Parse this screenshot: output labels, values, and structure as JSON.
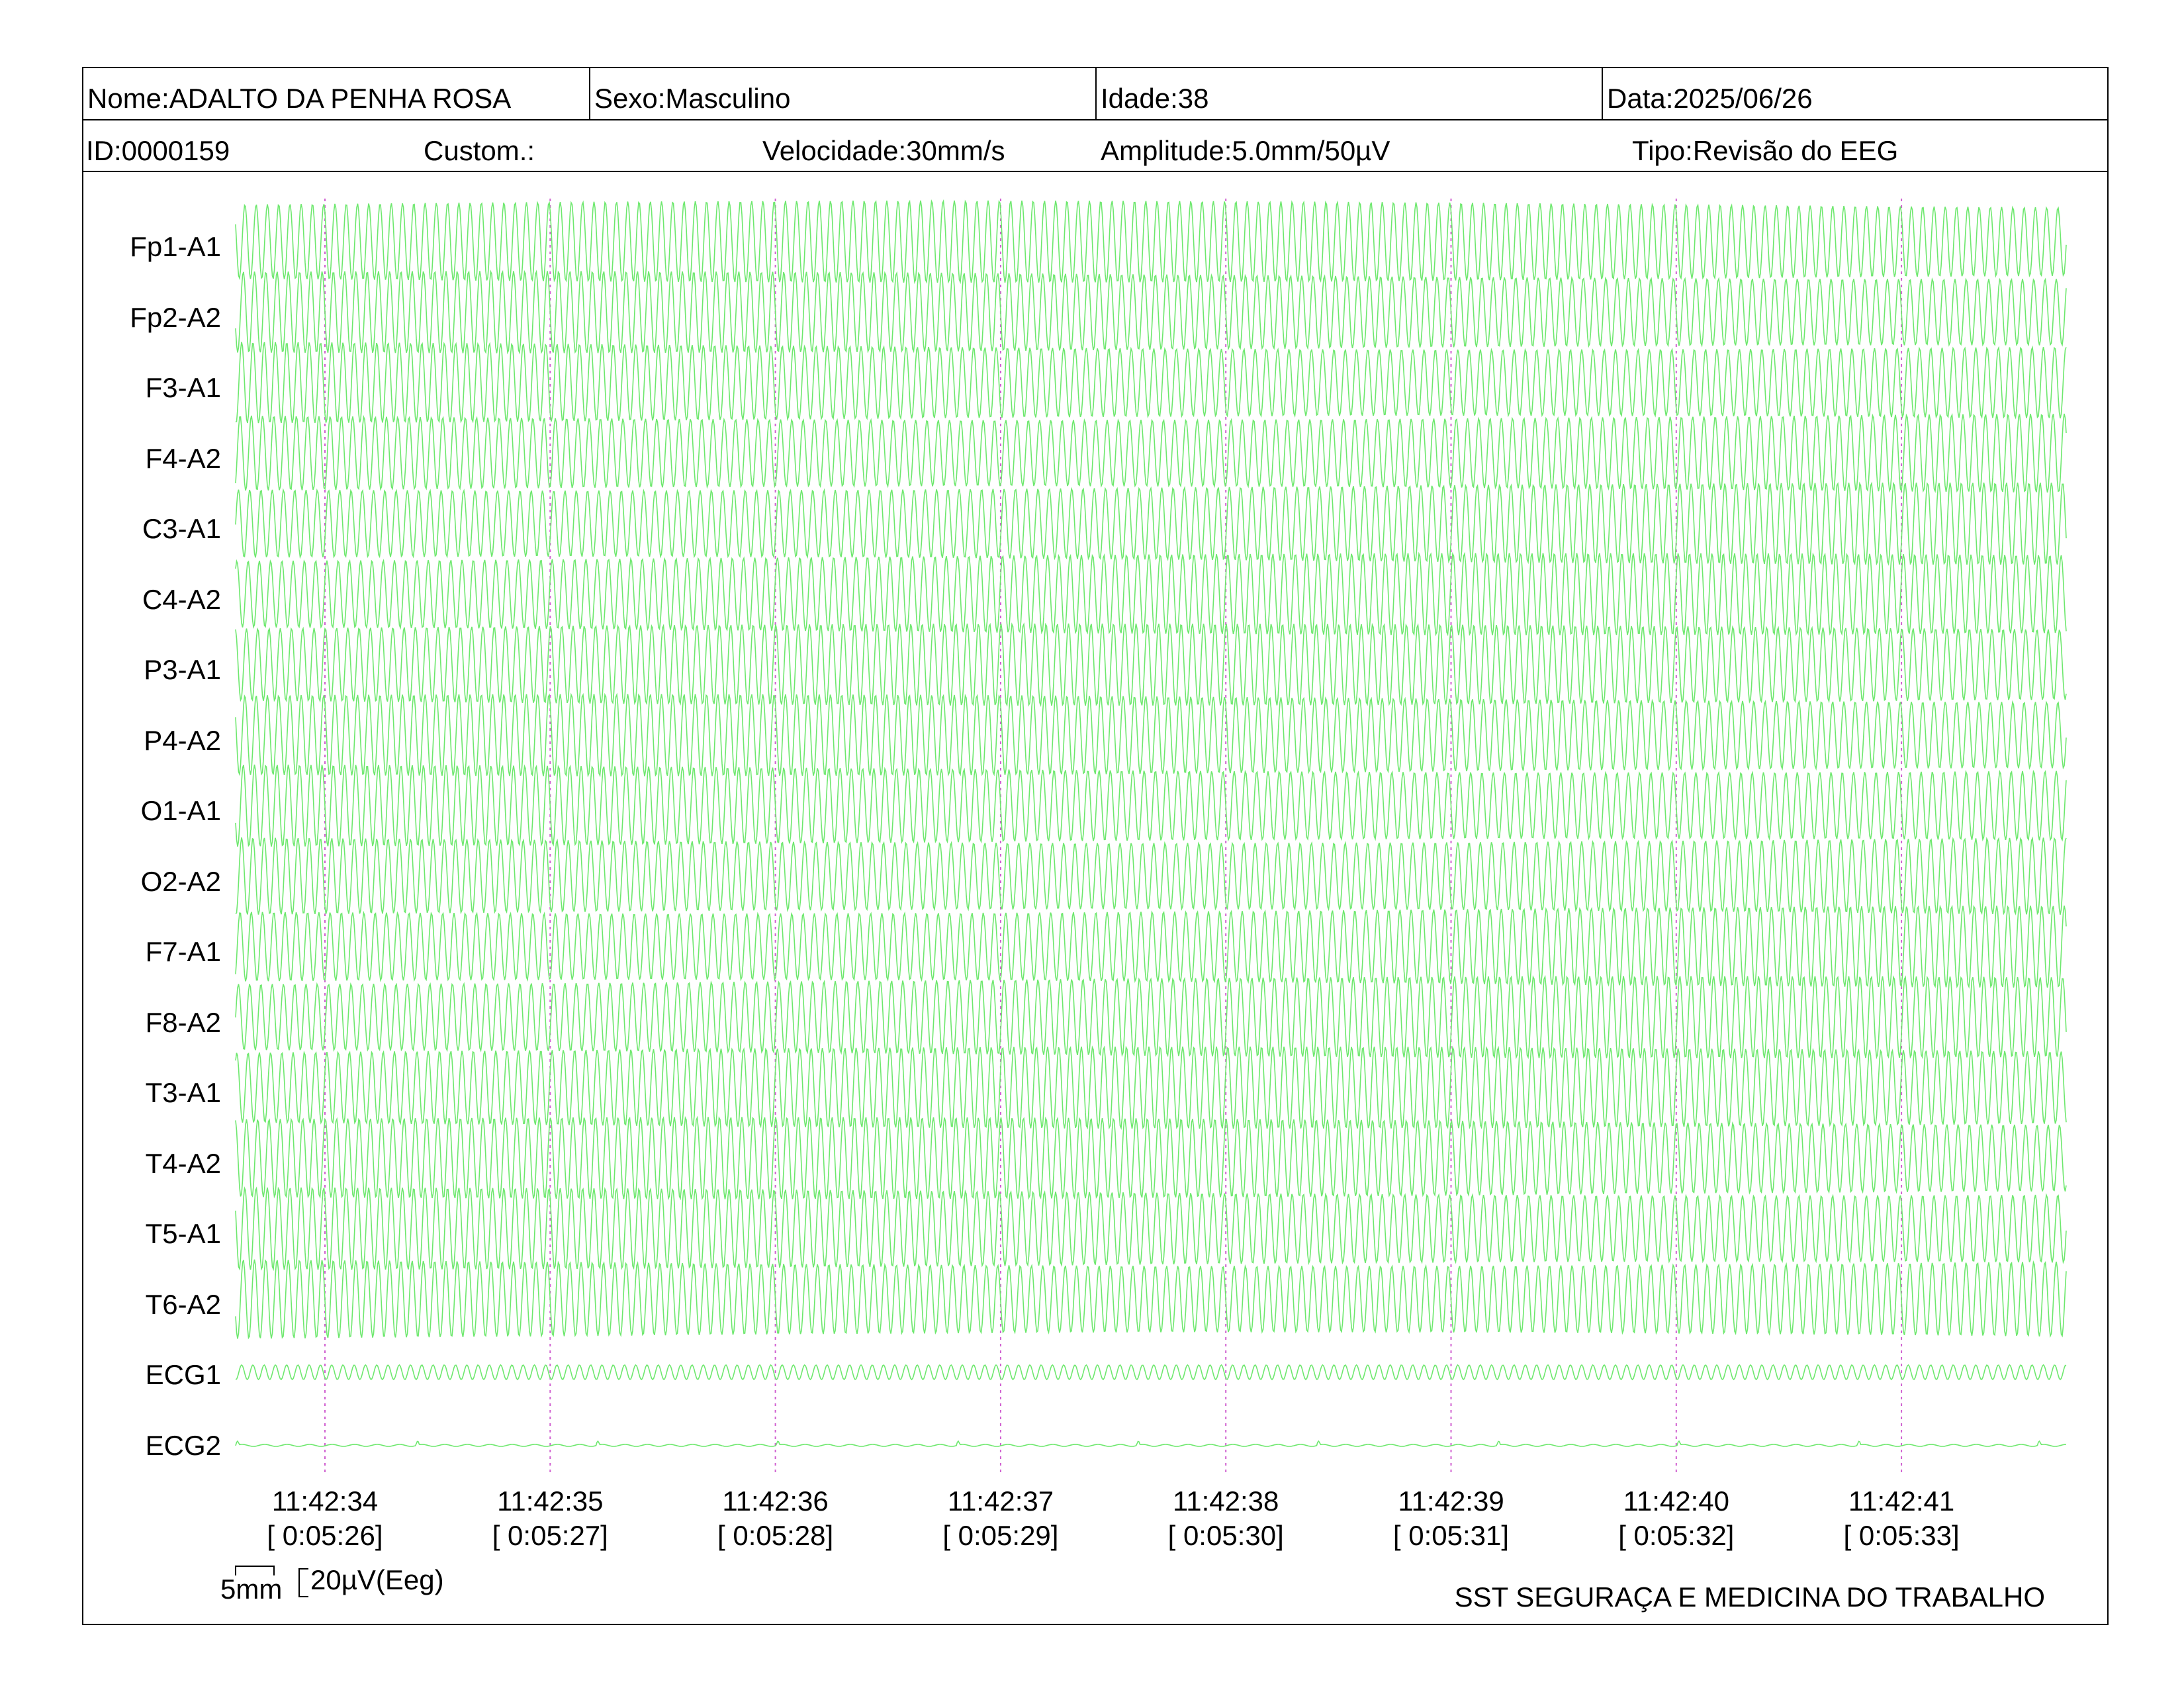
{
  "header": {
    "nome": "Nome:ADALTO DA PENHA ROSA",
    "sexo": "Sexo:Masculino",
    "idade": "Idade:38",
    "data": "Data:2025/06/26",
    "id": "ID:0000159",
    "custom": "Custom.:",
    "velocidade": "Velocidade:30mm/s",
    "amplitude": "Amplitude:5.0mm/50µV",
    "tipo": "Tipo:Revisão do EEG"
  },
  "chart_data": {
    "type": "line",
    "title": "",
    "xlabel": "",
    "ylabel": "",
    "channels": [
      "Fp1-A1",
      "Fp2-A2",
      "F3-A1",
      "F4-A2",
      "C3-A1",
      "C4-A2",
      "P3-A1",
      "P4-A2",
      "O1-A1",
      "O2-A2",
      "F7-A1",
      "F8-A2",
      "T3-A1",
      "T4-A2",
      "T5-A1",
      "T6-A2",
      "ECG1",
      "ECG2"
    ],
    "time_markers": [
      {
        "clock": "11:42:34",
        "elapsed": "[ 0:05:26]"
      },
      {
        "clock": "11:42:35",
        "elapsed": "[ 0:05:27]"
      },
      {
        "clock": "11:42:36",
        "elapsed": "[ 0:05:28]"
      },
      {
        "clock": "11:42:37",
        "elapsed": "[ 0:05:29]"
      },
      {
        "clock": "11:42:38",
        "elapsed": "[ 0:05:30]"
      },
      {
        "clock": "11:42:39",
        "elapsed": "[ 0:05:31]"
      },
      {
        "clock": "11:42:40",
        "elapsed": "[ 0:05:32]"
      },
      {
        "clock": "11:42:41",
        "elapsed": "[ 0:05:33]"
      }
    ],
    "eeg_wave_hz": 20,
    "trace_color": "#6ee86e",
    "marker_color": "#d060d0",
    "grid": false
  },
  "scale": {
    "time_label": "5mm",
    "amp_label": "20µV(Eeg)"
  },
  "footer": {
    "organization": "SST SEGURAÇA E MEDICINA DO TRABALHO"
  }
}
